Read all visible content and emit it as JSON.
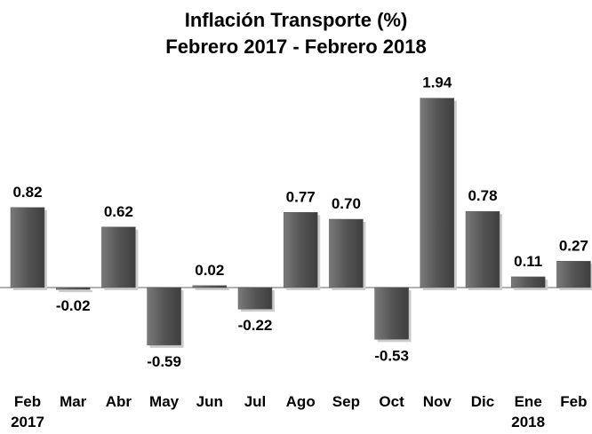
{
  "chart_data": {
    "type": "bar",
    "title": "Inflación Transporte (%)",
    "subtitle": "Febrero 2017 - Febrero  2018",
    "categories": [
      "Feb\n2017",
      "Mar",
      "Abr",
      "May",
      "Jun",
      "Jul",
      "Ago",
      "Sep",
      "Oct",
      "Nov",
      "Dic",
      "Ene\n2018",
      "Feb"
    ],
    "values": [
      0.82,
      -0.02,
      0.62,
      -0.59,
      0.02,
      -0.22,
      0.77,
      0.7,
      -0.53,
      1.94,
      0.78,
      0.11,
      0.27
    ],
    "value_labels": [
      "0.82",
      "-0.02",
      "0.62",
      "-0.59",
      "0.02",
      "-0.22",
      "0.77",
      "0.70",
      "-0.53",
      "1.94",
      "0.78",
      "0.11",
      "0.27"
    ],
    "color": "#5a5a5a"
  }
}
